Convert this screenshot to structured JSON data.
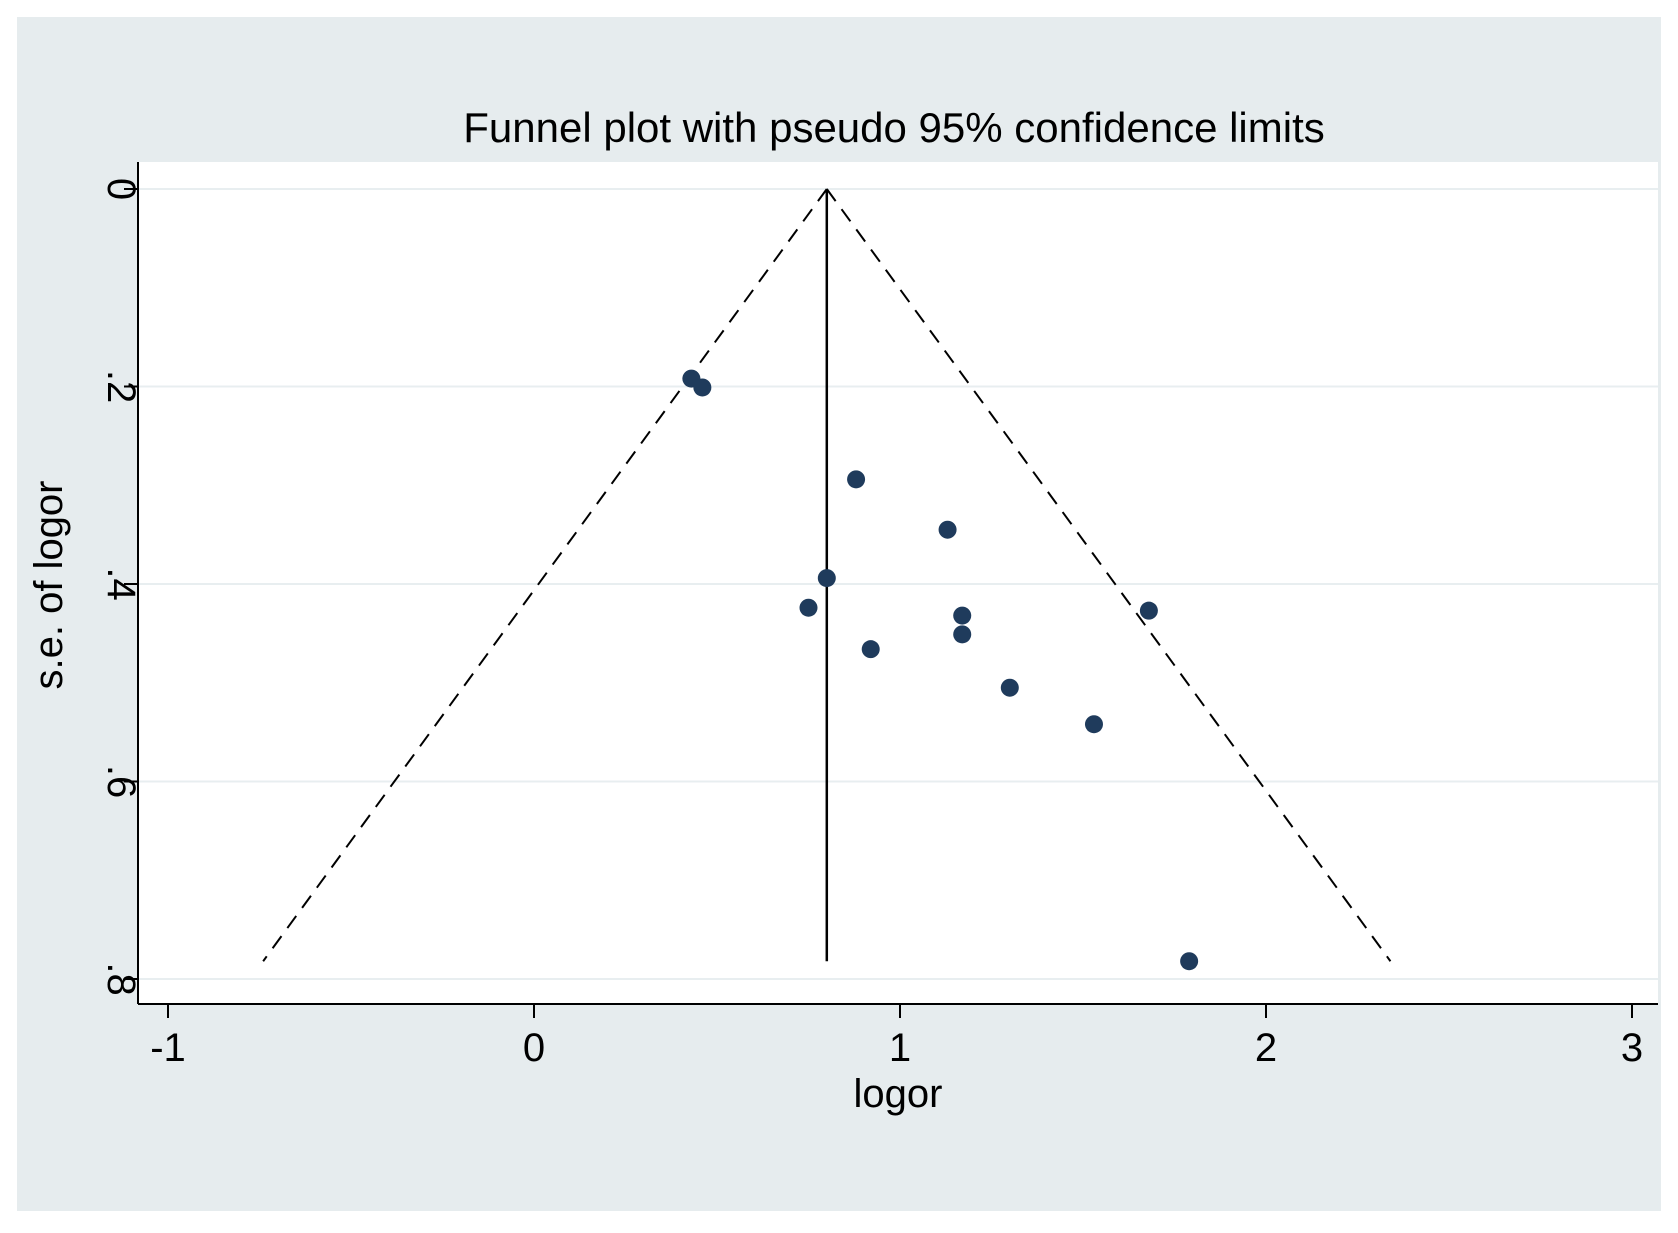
{
  "chart_data": {
    "type": "scatter",
    "title": "Funnel plot with pseudo 95% confidence limits",
    "xlabel": "logor",
    "ylabel": "s.e. of logor",
    "xlim": [
      -1,
      3
    ],
    "ylim": [
      0,
      0.8
    ],
    "y_reversed": true,
    "x_ticks": [
      {
        "value": -1,
        "label": "-1"
      },
      {
        "value": 0,
        "label": "0"
      },
      {
        "value": 1,
        "label": "1"
      },
      {
        "value": 2,
        "label": "2"
      },
      {
        "value": 3,
        "label": "3"
      }
    ],
    "y_ticks": [
      {
        "value": 0,
        "label": "0"
      },
      {
        "value": 0.2,
        "label": ".2"
      },
      {
        "value": 0.4,
        "label": ".4"
      },
      {
        "value": 0.6,
        "label": ".6"
      },
      {
        "value": 0.8,
        "label": ".8"
      }
    ],
    "grid": "horizontal",
    "pooled_estimate": 0.8,
    "funnel": {
      "apex": [
        0.8,
        0
      ],
      "lower_left": [
        -0.74,
        0.782
      ],
      "lower_right": [
        2.34,
        0.782
      ],
      "style": "dashed"
    },
    "points": [
      {
        "x": 0.43,
        "y": 0.192
      },
      {
        "x": 0.46,
        "y": 0.201
      },
      {
        "x": 0.88,
        "y": 0.294
      },
      {
        "x": 1.13,
        "y": 0.345
      },
      {
        "x": 0.8,
        "y": 0.394
      },
      {
        "x": 0.75,
        "y": 0.424
      },
      {
        "x": 1.17,
        "y": 0.432
      },
      {
        "x": 1.17,
        "y": 0.451
      },
      {
        "x": 1.68,
        "y": 0.427
      },
      {
        "x": 0.92,
        "y": 0.466
      },
      {
        "x": 1.3,
        "y": 0.505
      },
      {
        "x": 1.53,
        "y": 0.542
      },
      {
        "x": 1.79,
        "y": 0.782
      }
    ],
    "colors": {
      "outer_background": "#e6ecee",
      "plot_background": "#ffffff",
      "gridline": "#e8eef0",
      "marker": "#1f3b5c",
      "line": "#000000"
    }
  }
}
